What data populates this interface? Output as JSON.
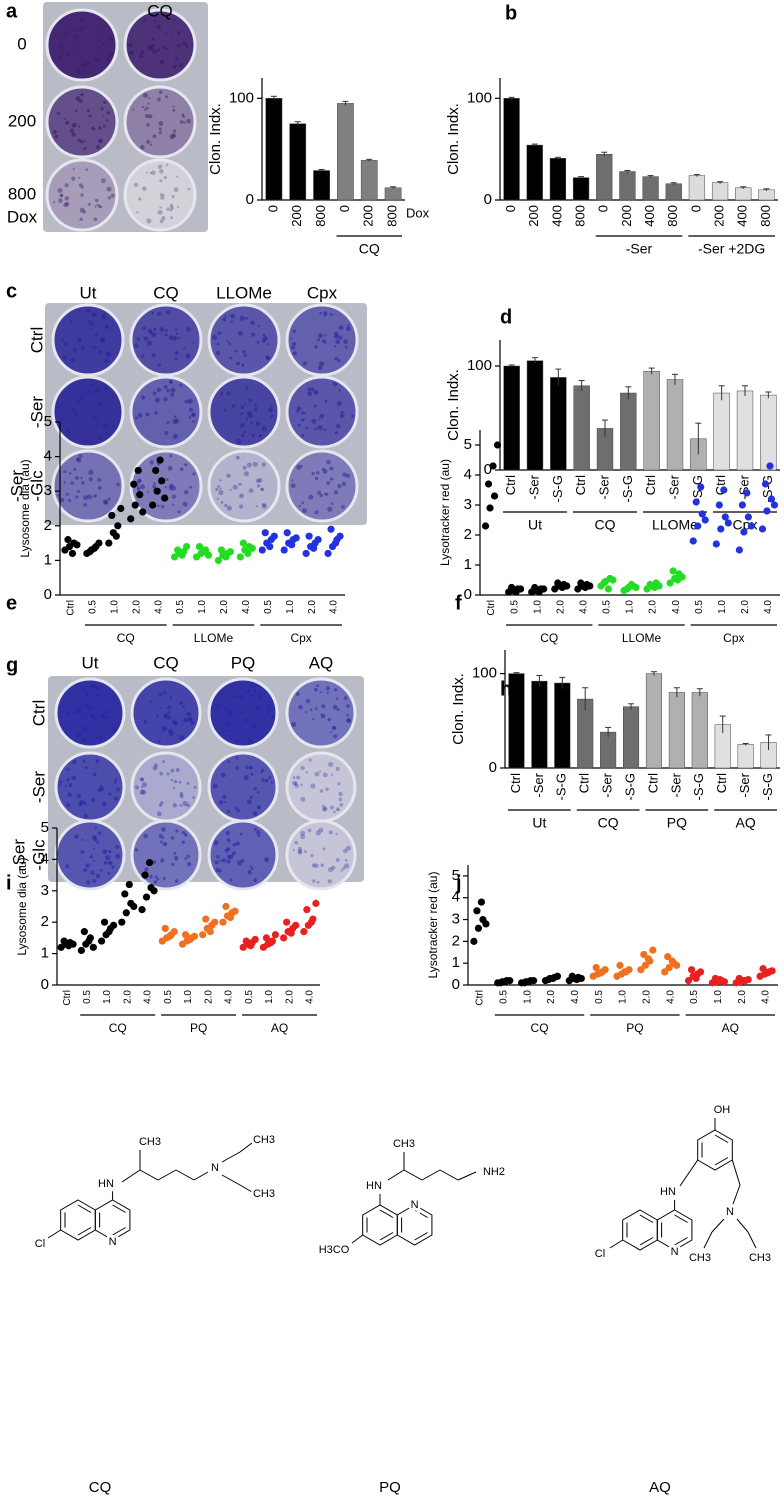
{
  "panel_labels": [
    "a",
    "b",
    "c",
    "d",
    "e",
    "f",
    "g",
    "h",
    "i",
    "j"
  ],
  "plates": [
    {
      "col_labels": [
        "CQ"
      ],
      "row_labels": [
        "0",
        "200",
        "800"
      ],
      "axis_label": "Dox"
    },
    {
      "col_labels": [
        "Ut",
        "CQ",
        "LLOMe",
        "Cpx"
      ],
      "row_labels": [
        "Ctrl",
        "-Ser",
        [
          "-Ser",
          "-Glc"
        ]
      ]
    },
    {
      "col_labels": [
        "Ut",
        "CQ",
        "PQ",
        "AQ"
      ],
      "row_labels": [
        "Ctrl",
        "-Ser",
        [
          "-Ser",
          "-Glc"
        ]
      ]
    }
  ],
  "chart_data": [
    {
      "type": "bar",
      "y_label": "Clon. Indx.",
      "x_label": "Dox",
      "categories": [
        "0",
        "200",
        "800",
        "0",
        "200",
        "800"
      ],
      "groups": [
        null,
        null,
        null,
        "CQ",
        "CQ",
        "CQ"
      ],
      "values": [
        100,
        75,
        29,
        95,
        39,
        12
      ],
      "errors": [
        2,
        2,
        1,
        2,
        1,
        1
      ],
      "colors": [
        "#000000",
        "#000000",
        "#000000",
        "#808080",
        "#808080",
        "#808080"
      ],
      "ylim": [
        0,
        120
      ],
      "yticks": [
        0,
        100
      ]
    },
    {
      "type": "bar",
      "y_label": "Clon. Indx.",
      "categories": [
        "0",
        "200",
        "400",
        "800",
        "0",
        "200",
        "400",
        "800",
        "0",
        "200",
        "400",
        "800"
      ],
      "groups": [
        null,
        null,
        null,
        null,
        "-Ser",
        "-Ser",
        "-Ser",
        "-Ser",
        "-Ser +2DG",
        "-Ser +2DG",
        "-Ser +2DG",
        "-Ser +2DG"
      ],
      "values": [
        100,
        54,
        41,
        22,
        45,
        28,
        23,
        16,
        24,
        17,
        12,
        10
      ],
      "errors": [
        1,
        1,
        1,
        1,
        2,
        1,
        1,
        1,
        1,
        1,
        1,
        1
      ],
      "colors": [
        "#000000",
        "#000000",
        "#000000",
        "#000000",
        "#6e6e6e",
        "#6e6e6e",
        "#6e6e6e",
        "#6e6e6e",
        "#dcdcdc",
        "#dcdcdc",
        "#dcdcdc",
        "#dcdcdc"
      ],
      "ylim": [
        0,
        120
      ],
      "yticks": [
        0,
        100
      ]
    },
    {
      "type": "bar",
      "y_label": "Clon. Indx.",
      "categories": [
        "Ctrl",
        "-Ser",
        "-S-G",
        "Ctrl",
        "-Ser",
        "-S-G",
        "Ctrl",
        "-Ser",
        "-S-G",
        "Ctrl",
        "-Ser",
        "-S-G"
      ],
      "groups": [
        "Ut",
        "Ut",
        "Ut",
        "CQ",
        "CQ",
        "CQ",
        "LLOMe",
        "LLOMe",
        "LLOMe",
        "Cpx",
        "Cpx",
        "Cpx"
      ],
      "values": [
        100,
        105,
        89,
        81,
        40,
        74,
        95,
        87,
        30,
        74,
        76,
        72
      ],
      "errors": [
        1,
        3,
        8,
        5,
        8,
        6,
        3,
        5,
        15,
        7,
        5,
        3
      ],
      "colors": [
        "#000000",
        "#000000",
        "#000000",
        "#6e6e6e",
        "#6e6e6e",
        "#6e6e6e",
        "#b0b0b0",
        "#b0b0b0",
        "#b0b0b0",
        "#e0e0e0",
        "#e0e0e0",
        "#e0e0e0"
      ],
      "ylim": [
        0,
        125
      ],
      "yticks": [
        0,
        100
      ]
    },
    {
      "type": "strip",
      "y_label": "Lysosome dia (au)",
      "categories": [
        "Ctrl",
        "0.5",
        "1.0",
        "2.0",
        "4.0",
        "0.5",
        "1.0",
        "2.0",
        "4.0",
        "0.5",
        "1.0",
        "2.0",
        "4.0"
      ],
      "groups": [
        null,
        "CQ",
        "CQ",
        "CQ",
        "CQ",
        "LLOMe",
        "LLOMe",
        "LLOMe",
        "LLOMe",
        "Cpx",
        "Cpx",
        "Cpx",
        "Cpx"
      ],
      "colors": [
        "#000000",
        "#000000",
        "#000000",
        "#000000",
        "#000000",
        "#22dd22",
        "#22dd22",
        "#22dd22",
        "#22dd22",
        "#2233dd",
        "#2233dd",
        "#2233dd",
        "#2233dd"
      ],
      "values": [
        [
          1.3,
          1.4,
          1.5,
          1.6,
          1.2,
          1.45
        ],
        [
          1.2,
          1.3,
          1.4,
          1.25,
          1.35,
          1.5
        ],
        [
          1.5,
          1.8,
          2.0,
          2.3,
          1.7,
          2.5
        ],
        [
          2.2,
          2.6,
          2.9,
          3.2,
          3.6,
          2.4
        ],
        [
          2.6,
          3.0,
          3.3,
          3.6,
          3.9,
          2.8
        ],
        [
          1.1,
          1.2,
          1.25,
          1.3,
          1.15,
          1.4
        ],
        [
          1.1,
          1.2,
          1.3,
          1.4,
          1.25,
          1.15
        ],
        [
          1.0,
          1.15,
          1.2,
          1.3,
          1.1,
          1.25
        ],
        [
          1.1,
          1.3,
          1.4,
          1.5,
          1.2,
          1.35
        ],
        [
          1.3,
          1.5,
          1.6,
          1.8,
          1.4,
          1.7
        ],
        [
          1.3,
          1.5,
          1.6,
          1.8,
          1.45,
          1.65
        ],
        [
          1.2,
          1.4,
          1.5,
          1.7,
          1.35,
          1.6
        ],
        [
          1.2,
          1.4,
          1.6,
          1.9,
          1.5,
          1.7
        ]
      ],
      "ylim": [
        0,
        5
      ],
      "yticks": [
        0,
        1,
        2,
        3,
        4,
        5
      ]
    },
    {
      "type": "strip",
      "y_label": "Lysotracker red (au)",
      "categories": [
        "Ctrl",
        "0.5",
        "1.0",
        "2.0",
        "4.0",
        "0.5",
        "1.0",
        "2.0",
        "4.0",
        "0.5",
        "1.0",
        "2.0",
        "4.0"
      ],
      "groups": [
        null,
        "CQ",
        "CQ",
        "CQ",
        "CQ",
        "LLOMe",
        "LLOMe",
        "LLOMe",
        "LLOMe",
        "Cpx",
        "Cpx",
        "Cpx",
        "Cpx"
      ],
      "colors": [
        "#000000",
        "#000000",
        "#000000",
        "#000000",
        "#000000",
        "#22dd22",
        "#22dd22",
        "#22dd22",
        "#22dd22",
        "#2233dd",
        "#2233dd",
        "#2233dd",
        "#2233dd"
      ],
      "values": [
        [
          2.3,
          2.9,
          3.3,
          3.7,
          4.3,
          5.0
        ],
        [
          0.1,
          0.15,
          0.2,
          0.25,
          0.1,
          0.2
        ],
        [
          0.1,
          0.15,
          0.2,
          0.25,
          0.1,
          0.2
        ],
        [
          0.2,
          0.3,
          0.35,
          0.4,
          0.25,
          0.3
        ],
        [
          0.2,
          0.3,
          0.35,
          0.4,
          0.25,
          0.3
        ],
        [
          0.3,
          0.45,
          0.55,
          0.4,
          0.2,
          0.5
        ],
        [
          0.15,
          0.25,
          0.3,
          0.2,
          0.35,
          0.25
        ],
        [
          0.2,
          0.3,
          0.4,
          0.35,
          0.25,
          0.3
        ],
        [
          0.4,
          0.55,
          0.7,
          0.8,
          0.5,
          0.6
        ],
        [
          1.8,
          2.3,
          2.7,
          3.1,
          3.6,
          2.5
        ],
        [
          1.7,
          2.2,
          2.6,
          3.0,
          3.5,
          2.4
        ],
        [
          1.5,
          2.1,
          2.6,
          3.0,
          3.4,
          2.3
        ],
        [
          2.2,
          2.8,
          3.2,
          3.7,
          4.3,
          3.0
        ]
      ],
      "ylim": [
        0,
        5.5
      ],
      "yticks": [
        0,
        1,
        2,
        3,
        4,
        5
      ]
    },
    {
      "type": "bar",
      "y_label": "Clon. Indx.",
      "categories": [
        "Ctrl",
        "-Ser",
        "-S-G",
        "Ctrl",
        "-Ser",
        "-S-G",
        "Ctrl",
        "-Ser",
        "-S-G",
        "Ctrl",
        "-Ser",
        "-S-G"
      ],
      "groups": [
        "Ut",
        "Ut",
        "Ut",
        "CQ",
        "CQ",
        "CQ",
        "PQ",
        "PQ",
        "PQ",
        "AQ",
        "AQ",
        "AQ"
      ],
      "values": [
        100,
        92,
        90,
        73,
        38,
        65,
        100,
        80,
        80,
        46,
        25,
        27
      ],
      "errors": [
        1,
        6,
        6,
        12,
        5,
        3,
        2,
        5,
        4,
        9,
        1,
        8
      ],
      "colors": [
        "#000000",
        "#000000",
        "#000000",
        "#6e6e6e",
        "#6e6e6e",
        "#6e6e6e",
        "#b0b0b0",
        "#b0b0b0",
        "#b0b0b0",
        "#e0e0e0",
        "#e0e0e0",
        "#e0e0e0"
      ],
      "ylim": [
        0,
        125
      ],
      "yticks": [
        0,
        100
      ]
    },
    {
      "type": "strip",
      "y_label": "Lysosome dia (au)",
      "categories": [
        "Ctrl",
        "0.5",
        "1.0",
        "2.0",
        "4.0",
        "0.5",
        "1.0",
        "2.0",
        "4.0",
        "0.5",
        "1.0",
        "2.0",
        "4.0"
      ],
      "groups": [
        null,
        "CQ",
        "CQ",
        "CQ",
        "CQ",
        "PQ",
        "PQ",
        "PQ",
        "PQ",
        "AQ",
        "AQ",
        "AQ",
        "AQ"
      ],
      "colors": [
        "#000000",
        "#000000",
        "#000000",
        "#000000",
        "#000000",
        "#f07020",
        "#f07020",
        "#f07020",
        "#f07020",
        "#e82020",
        "#e82020",
        "#e82020",
        "#e82020"
      ],
      "values": [
        [
          1.2,
          1.3,
          1.35,
          1.4,
          1.25,
          1.3
        ],
        [
          1.1,
          1.3,
          1.5,
          1.7,
          1.4,
          1.2
        ],
        [
          1.4,
          1.6,
          1.8,
          2.0,
          1.7,
          1.9
        ],
        [
          2.0,
          2.3,
          2.6,
          2.9,
          3.2,
          2.5
        ],
        [
          2.4,
          2.8,
          3.1,
          3.5,
          3.9,
          3.0
        ],
        [
          1.4,
          1.5,
          1.6,
          1.8,
          1.55,
          1.7
        ],
        [
          1.3,
          1.4,
          1.5,
          1.6,
          1.45,
          1.55
        ],
        [
          1.6,
          1.8,
          1.9,
          2.1,
          1.7,
          2.0
        ],
        [
          2.0,
          2.2,
          2.3,
          2.5,
          2.15,
          2.35
        ],
        [
          1.2,
          1.3,
          1.35,
          1.4,
          1.25,
          1.45
        ],
        [
          1.2,
          1.3,
          1.4,
          1.5,
          1.35,
          1.6
        ],
        [
          1.5,
          1.7,
          1.8,
          2.0,
          1.65,
          1.9
        ],
        [
          1.7,
          1.9,
          2.1,
          2.4,
          2.0,
          2.6
        ]
      ],
      "ylim": [
        0,
        5
      ],
      "yticks": [
        0,
        1,
        2,
        3,
        4,
        5
      ]
    },
    {
      "type": "strip",
      "y_label": "Lysotracker red (au)",
      "categories": [
        "Ctrl",
        "0.5",
        "1.0",
        "2.0",
        "4.0",
        "0.5",
        "1.0",
        "2.0",
        "4.0",
        "0.5",
        "1.0",
        "2.0",
        "4.0"
      ],
      "groups": [
        null,
        "CQ",
        "CQ",
        "CQ",
        "CQ",
        "PQ",
        "PQ",
        "PQ",
        "PQ",
        "AQ",
        "AQ",
        "AQ",
        "AQ"
      ],
      "colors": [
        "#000000",
        "#000000",
        "#000000",
        "#000000",
        "#000000",
        "#f07020",
        "#f07020",
        "#f07020",
        "#f07020",
        "#e82020",
        "#e82020",
        "#e82020",
        "#e82020"
      ],
      "values": [
        [
          2.0,
          2.6,
          3.0,
          3.4,
          3.8,
          2.8
        ],
        [
          0.1,
          0.15,
          0.2,
          0.1,
          0.15,
          0.2
        ],
        [
          0.1,
          0.15,
          0.2,
          0.1,
          0.15,
          0.2
        ],
        [
          0.2,
          0.3,
          0.35,
          0.25,
          0.3,
          0.4
        ],
        [
          0.2,
          0.3,
          0.35,
          0.4,
          0.25,
          0.3
        ],
        [
          0.4,
          0.5,
          0.6,
          0.8,
          0.55,
          0.7
        ],
        [
          0.4,
          0.5,
          0.6,
          0.9,
          0.6,
          0.7
        ],
        [
          0.7,
          0.9,
          1.1,
          1.4,
          1.2,
          1.6
        ],
        [
          0.6,
          0.8,
          1.0,
          1.3,
          1.1,
          0.9
        ],
        [
          0.2,
          0.4,
          0.5,
          0.7,
          0.3,
          0.6
        ],
        [
          0.1,
          0.15,
          0.2,
          0.3,
          0.25,
          0.15
        ],
        [
          0.1,
          0.15,
          0.2,
          0.3,
          0.2,
          0.25
        ],
        [
          0.4,
          0.5,
          0.6,
          0.75,
          0.55,
          0.65
        ]
      ],
      "ylim": [
        0,
        5.5
      ],
      "yticks": [
        0,
        1,
        2,
        3,
        4,
        5
      ]
    }
  ],
  "structures": [
    {
      "name": "CQ",
      "atoms": [
        "CH3",
        "HN",
        "N",
        "CH3",
        "CH3",
        "Cl",
        "N"
      ]
    },
    {
      "name": "PQ",
      "atoms": [
        "CH3",
        "HN",
        "N",
        "NH2",
        "H3CO"
      ]
    },
    {
      "name": "AQ",
      "atoms": [
        "OH",
        "HN",
        "N",
        "CH3",
        "CH3",
        "Cl",
        "N"
      ]
    }
  ]
}
